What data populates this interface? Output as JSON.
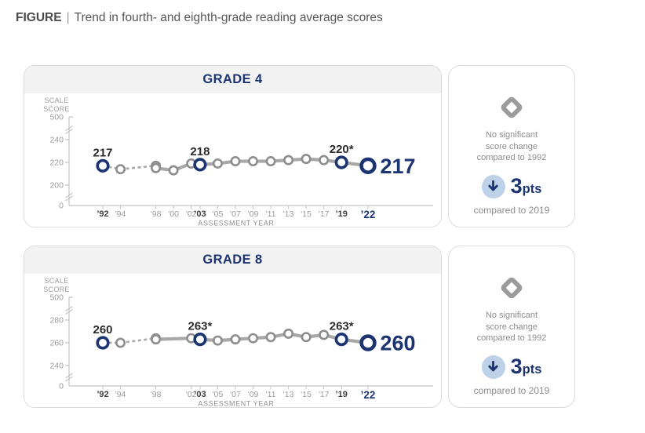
{
  "figure_header": {
    "label": "FIGURE",
    "separator": "|",
    "title": "Trend in fourth- and eighth-grade reading average scores"
  },
  "colors": {
    "navy": "#1c3472",
    "light_blue": "#bdd2e8",
    "line": "#a8a8a8",
    "marker": "#8d8d8d",
    "axis": "#c4c4c4",
    "tick_text": "#9b9b9b",
    "tick_bold": "#3d3d3d",
    "label_dark": "#2b2b2b",
    "muted_text": "#8c8c8c",
    "icon_gray": "#9b9b9b",
    "header_bg": "#f2f2f3",
    "panel_border": "#dcdcdc"
  },
  "panels": [
    {
      "grade_title": "GRADE 4",
      "summary": {
        "no_change_icon": "diamond",
        "no_change_lines": [
          "No significant",
          "score change",
          "compared to 1992"
        ],
        "delta_direction": "down",
        "delta_value": "3",
        "delta_unit": "pts",
        "delta_note": "compared to 2019"
      }
    },
    {
      "grade_title": "GRADE 8",
      "summary": {
        "no_change_icon": "diamond",
        "no_change_lines": [
          "No significant",
          "score change",
          "compared to 1992"
        ],
        "delta_direction": "down",
        "delta_value": "3",
        "delta_unit": "pts",
        "delta_note": "compared to 2019"
      }
    }
  ],
  "chart_data": [
    {
      "type": "line",
      "title": "GRADE 4",
      "scale_label_lines": [
        "SCALE",
        "SCORE"
      ],
      "axis_title": "ASSESSMENT YEAR",
      "y_axis": {
        "broken": true,
        "top_tick": {
          "value": 500,
          "label": "500"
        },
        "mid_ticks": [
          {
            "value": 240,
            "label": "240"
          },
          {
            "value": 220,
            "label": "220"
          },
          {
            "value": 200,
            "label": "200"
          }
        ],
        "bottom_tick": {
          "value": 0,
          "label": "0"
        }
      },
      "x_axis": {
        "base_year": 1992,
        "end_year": 2022,
        "ticks": [
          {
            "year": 1992,
            "label": "’92",
            "style": "bold"
          },
          {
            "year": 1994,
            "label": "'94",
            "style": "plain"
          },
          {
            "year": 1998,
            "label": "'98",
            "style": "plain"
          },
          {
            "year": 2000,
            "label": "'00",
            "style": "plain"
          },
          {
            "year": 2002,
            "label": "'02",
            "style": "plain"
          },
          {
            "year": 2003,
            "label": "’03",
            "style": "bold"
          },
          {
            "year": 2005,
            "label": "'05",
            "style": "plain"
          },
          {
            "year": 2007,
            "label": "'07",
            "style": "plain"
          },
          {
            "year": 2009,
            "label": "'09",
            "style": "plain"
          },
          {
            "year": 2011,
            "label": "'11",
            "style": "plain"
          },
          {
            "year": 2013,
            "label": "'13",
            "style": "plain"
          },
          {
            "year": 2015,
            "label": "'15",
            "style": "plain"
          },
          {
            "year": 2017,
            "label": "'17",
            "style": "plain"
          },
          {
            "year": 2019,
            "label": "’19",
            "style": "bold"
          },
          {
            "year": 2022,
            "label": "’22",
            "style": "accent"
          }
        ]
      },
      "series": [
        {
          "name": "dashed-trend",
          "style": "dashed",
          "points": [
            {
              "year": 1992,
              "value": 217,
              "highlight": true,
              "label": "217"
            },
            {
              "year": 1994,
              "value": 214
            },
            {
              "year": 1998,
              "value": 217
            }
          ]
        },
        {
          "name": "solid-trend",
          "style": "solid",
          "points": [
            {
              "year": 1998,
              "value": 215
            },
            {
              "year": 2000,
              "value": 213
            },
            {
              "year": 2002,
              "value": 219
            },
            {
              "year": 2003,
              "value": 218,
              "highlight": true,
              "label": "218"
            },
            {
              "year": 2005,
              "value": 219
            },
            {
              "year": 2007,
              "value": 221
            },
            {
              "year": 2009,
              "value": 221
            },
            {
              "year": 2011,
              "value": 221
            },
            {
              "year": 2013,
              "value": 222
            },
            {
              "year": 2015,
              "value": 223
            },
            {
              "year": 2017,
              "value": 222
            },
            {
              "year": 2019,
              "value": 220,
              "highlight": true,
              "label": "220*"
            },
            {
              "year": 2022,
              "value": 217,
              "highlight": true,
              "big": true,
              "label": "217"
            }
          ]
        }
      ]
    },
    {
      "type": "line",
      "title": "GRADE 8",
      "scale_label_lines": [
        "SCALE",
        "SCORE"
      ],
      "axis_title": "ASSESSMENT YEAR",
      "y_axis": {
        "broken": true,
        "top_tick": {
          "value": 500,
          "label": "500"
        },
        "mid_ticks": [
          {
            "value": 280,
            "label": "280"
          },
          {
            "value": 260,
            "label": "260"
          },
          {
            "value": 240,
            "label": "240"
          }
        ],
        "bottom_tick": {
          "value": 0,
          "label": "0"
        }
      },
      "x_axis": {
        "base_year": 1992,
        "end_year": 2022,
        "ticks": [
          {
            "year": 1992,
            "label": "’92",
            "style": "bold"
          },
          {
            "year": 1994,
            "label": "'94",
            "style": "plain"
          },
          {
            "year": 1998,
            "label": "'98",
            "style": "plain"
          },
          {
            "year": 2002,
            "label": "'02",
            "style": "plain"
          },
          {
            "year": 2003,
            "label": "’03",
            "style": "bold"
          },
          {
            "year": 2005,
            "label": "'05",
            "style": "plain"
          },
          {
            "year": 2007,
            "label": "'07",
            "style": "plain"
          },
          {
            "year": 2009,
            "label": "'09",
            "style": "plain"
          },
          {
            "year": 2011,
            "label": "'11",
            "style": "plain"
          },
          {
            "year": 2013,
            "label": "'13",
            "style": "plain"
          },
          {
            "year": 2015,
            "label": "'15",
            "style": "plain"
          },
          {
            "year": 2017,
            "label": "'17",
            "style": "plain"
          },
          {
            "year": 2019,
            "label": "’19",
            "style": "bold"
          },
          {
            "year": 2022,
            "label": "’22",
            "style": "accent"
          }
        ]
      },
      "series": [
        {
          "name": "dashed-trend",
          "style": "dashed",
          "points": [
            {
              "year": 1992,
              "value": 260,
              "highlight": true,
              "label": "260"
            },
            {
              "year": 1994,
              "value": 260
            },
            {
              "year": 1998,
              "value": 264
            }
          ]
        },
        {
          "name": "solid-trend",
          "style": "solid",
          "points": [
            {
              "year": 1998,
              "value": 263
            },
            {
              "year": 2002,
              "value": 264
            },
            {
              "year": 2003,
              "value": 263,
              "highlight": true,
              "label": "263*"
            },
            {
              "year": 2005,
              "value": 262
            },
            {
              "year": 2007,
              "value": 263
            },
            {
              "year": 2009,
              "value": 264
            },
            {
              "year": 2011,
              "value": 265
            },
            {
              "year": 2013,
              "value": 268
            },
            {
              "year": 2015,
              "value": 265
            },
            {
              "year": 2017,
              "value": 267
            },
            {
              "year": 2019,
              "value": 263,
              "highlight": true,
              "label": "263*"
            },
            {
              "year": 2022,
              "value": 260,
              "highlight": true,
              "big": true,
              "label": "260"
            }
          ]
        }
      ]
    }
  ]
}
